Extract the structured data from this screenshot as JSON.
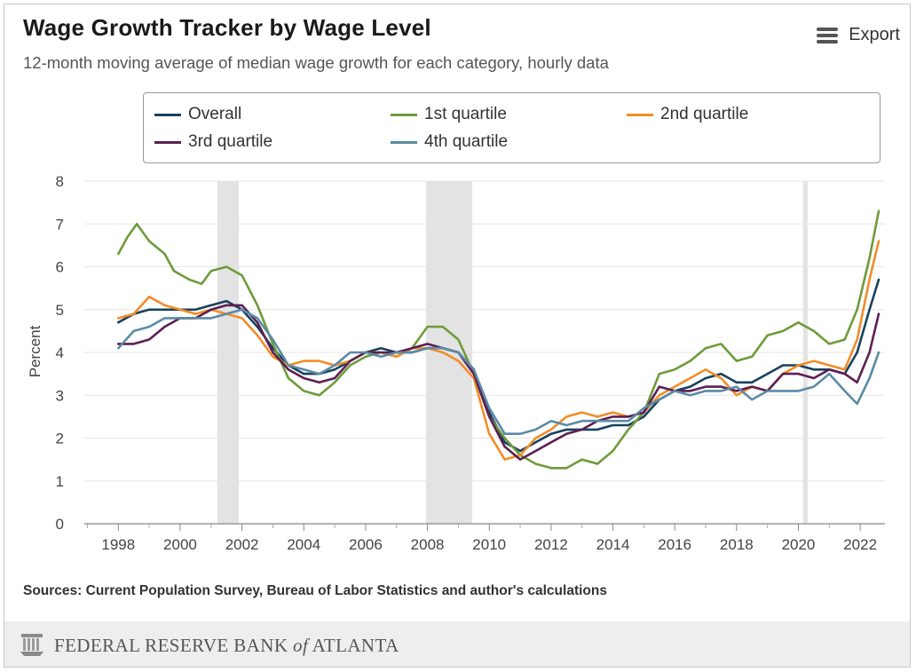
{
  "header": {
    "title": "Wage Growth Tracker by Wage Level",
    "subtitle": "12-month moving average of median wage growth for each category, hourly data",
    "export_label": "Export"
  },
  "footer": {
    "source": "Sources: Current Population Survey, Bureau of Labor Statistics and author's calculations",
    "org_prefix": "FEDERAL RESERVE BANK ",
    "org_of": "of",
    "org_suffix": " ATLANTA"
  },
  "chart_data": {
    "type": "line",
    "ylabel": "Percent",
    "ylim": [
      0,
      8
    ],
    "xlim": [
      1996.9,
      2022.8
    ],
    "yticks": [
      "0",
      "1",
      "2",
      "3",
      "4",
      "5",
      "6",
      "7",
      "8"
    ],
    "xticks": [
      "1998",
      "2000",
      "2002",
      "2004",
      "2006",
      "2008",
      "2010",
      "2012",
      "2014",
      "2016",
      "2018",
      "2020",
      "2022"
    ],
    "grid": true,
    "legend_position": "top",
    "recessions": [
      [
        2001.2,
        2001.9
      ],
      [
        2007.95,
        2009.45
      ],
      [
        2020.15,
        2020.3
      ]
    ],
    "series": [
      {
        "name": "Overall",
        "color": "#17415f",
        "points": [
          [
            1998.0,
            4.7
          ],
          [
            1998.5,
            4.9
          ],
          [
            1999.0,
            5.0
          ],
          [
            1999.5,
            5.0
          ],
          [
            2000.0,
            5.0
          ],
          [
            2000.5,
            5.0
          ],
          [
            2001.0,
            5.1
          ],
          [
            2001.5,
            5.2
          ],
          [
            2002.0,
            5.0
          ],
          [
            2002.5,
            4.6
          ],
          [
            2003.0,
            4.1
          ],
          [
            2003.5,
            3.7
          ],
          [
            2004.0,
            3.5
          ],
          [
            2004.5,
            3.5
          ],
          [
            2005.0,
            3.6
          ],
          [
            2005.5,
            3.8
          ],
          [
            2006.0,
            4.0
          ],
          [
            2006.5,
            4.1
          ],
          [
            2007.0,
            4.0
          ],
          [
            2007.5,
            4.0
          ],
          [
            2008.0,
            4.1
          ],
          [
            2008.5,
            4.1
          ],
          [
            2009.0,
            4.0
          ],
          [
            2009.5,
            3.6
          ],
          [
            2010.0,
            2.6
          ],
          [
            2010.5,
            1.9
          ],
          [
            2011.0,
            1.7
          ],
          [
            2011.5,
            1.9
          ],
          [
            2012.0,
            2.1
          ],
          [
            2012.5,
            2.2
          ],
          [
            2013.0,
            2.2
          ],
          [
            2013.5,
            2.2
          ],
          [
            2014.0,
            2.3
          ],
          [
            2014.5,
            2.3
          ],
          [
            2015.0,
            2.5
          ],
          [
            2015.5,
            2.9
          ],
          [
            2016.0,
            3.1
          ],
          [
            2016.5,
            3.2
          ],
          [
            2017.0,
            3.4
          ],
          [
            2017.5,
            3.5
          ],
          [
            2018.0,
            3.3
          ],
          [
            2018.5,
            3.3
          ],
          [
            2019.0,
            3.5
          ],
          [
            2019.5,
            3.7
          ],
          [
            2020.0,
            3.7
          ],
          [
            2020.5,
            3.6
          ],
          [
            2021.0,
            3.6
          ],
          [
            2021.5,
            3.5
          ],
          [
            2021.9,
            4.0
          ],
          [
            2022.3,
            5.0
          ],
          [
            2022.6,
            5.7
          ]
        ]
      },
      {
        "name": "1st quartile",
        "color": "#6e9b3a",
        "points": [
          [
            1998.0,
            6.3
          ],
          [
            1998.3,
            6.7
          ],
          [
            1998.6,
            7.0
          ],
          [
            1999.0,
            6.6
          ],
          [
            1999.5,
            6.3
          ],
          [
            1999.8,
            5.9
          ],
          [
            2000.3,
            5.7
          ],
          [
            2000.7,
            5.6
          ],
          [
            2001.0,
            5.9
          ],
          [
            2001.5,
            6.0
          ],
          [
            2002.0,
            5.8
          ],
          [
            2002.5,
            5.1
          ],
          [
            2003.0,
            4.2
          ],
          [
            2003.5,
            3.4
          ],
          [
            2004.0,
            3.1
          ],
          [
            2004.5,
            3.0
          ],
          [
            2005.0,
            3.3
          ],
          [
            2005.5,
            3.7
          ],
          [
            2006.0,
            3.9
          ],
          [
            2006.5,
            4.0
          ],
          [
            2007.0,
            3.9
          ],
          [
            2007.5,
            4.1
          ],
          [
            2008.0,
            4.6
          ],
          [
            2008.5,
            4.6
          ],
          [
            2009.0,
            4.3
          ],
          [
            2009.5,
            3.5
          ],
          [
            2010.0,
            2.5
          ],
          [
            2010.5,
            2.0
          ],
          [
            2011.0,
            1.6
          ],
          [
            2011.5,
            1.4
          ],
          [
            2012.0,
            1.3
          ],
          [
            2012.5,
            1.3
          ],
          [
            2013.0,
            1.5
          ],
          [
            2013.5,
            1.4
          ],
          [
            2014.0,
            1.7
          ],
          [
            2014.5,
            2.2
          ],
          [
            2015.0,
            2.6
          ],
          [
            2015.5,
            3.5
          ],
          [
            2016.0,
            3.6
          ],
          [
            2016.5,
            3.8
          ],
          [
            2017.0,
            4.1
          ],
          [
            2017.5,
            4.2
          ],
          [
            2018.0,
            3.8
          ],
          [
            2018.5,
            3.9
          ],
          [
            2019.0,
            4.4
          ],
          [
            2019.5,
            4.5
          ],
          [
            2020.0,
            4.7
          ],
          [
            2020.5,
            4.5
          ],
          [
            2021.0,
            4.2
          ],
          [
            2021.5,
            4.3
          ],
          [
            2021.9,
            5.0
          ],
          [
            2022.3,
            6.2
          ],
          [
            2022.6,
            7.3
          ]
        ]
      },
      {
        "name": "2nd quartile",
        "color": "#f28c28",
        "points": [
          [
            1998.0,
            4.8
          ],
          [
            1998.5,
            4.9
          ],
          [
            1999.0,
            5.3
          ],
          [
            1999.5,
            5.1
          ],
          [
            2000.0,
            5.0
          ],
          [
            2000.5,
            4.9
          ],
          [
            2001.0,
            5.0
          ],
          [
            2001.5,
            4.9
          ],
          [
            2002.0,
            4.8
          ],
          [
            2002.5,
            4.4
          ],
          [
            2003.0,
            3.9
          ],
          [
            2003.5,
            3.7
          ],
          [
            2004.0,
            3.8
          ],
          [
            2004.5,
            3.8
          ],
          [
            2005.0,
            3.7
          ],
          [
            2005.5,
            3.8
          ],
          [
            2006.0,
            4.0
          ],
          [
            2006.5,
            4.0
          ],
          [
            2007.0,
            3.9
          ],
          [
            2007.5,
            4.1
          ],
          [
            2008.0,
            4.1
          ],
          [
            2008.5,
            4.0
          ],
          [
            2009.0,
            3.8
          ],
          [
            2009.5,
            3.4
          ],
          [
            2010.0,
            2.1
          ],
          [
            2010.5,
            1.5
          ],
          [
            2011.0,
            1.6
          ],
          [
            2011.5,
            2.0
          ],
          [
            2012.0,
            2.2
          ],
          [
            2012.5,
            2.5
          ],
          [
            2013.0,
            2.6
          ],
          [
            2013.5,
            2.5
          ],
          [
            2014.0,
            2.6
          ],
          [
            2014.5,
            2.5
          ],
          [
            2015.0,
            2.6
          ],
          [
            2015.5,
            3.0
          ],
          [
            2016.0,
            3.2
          ],
          [
            2016.5,
            3.4
          ],
          [
            2017.0,
            3.6
          ],
          [
            2017.5,
            3.4
          ],
          [
            2018.0,
            3.0
          ],
          [
            2018.5,
            3.2
          ],
          [
            2019.0,
            3.1
          ],
          [
            2019.5,
            3.5
          ],
          [
            2020.0,
            3.7
          ],
          [
            2020.5,
            3.8
          ],
          [
            2021.0,
            3.7
          ],
          [
            2021.5,
            3.6
          ],
          [
            2021.9,
            4.3
          ],
          [
            2022.3,
            5.7
          ],
          [
            2022.6,
            6.6
          ]
        ]
      },
      {
        "name": "3rd quartile",
        "color": "#5c1f53",
        "points": [
          [
            1998.0,
            4.2
          ],
          [
            1998.5,
            4.2
          ],
          [
            1999.0,
            4.3
          ],
          [
            1999.5,
            4.6
          ],
          [
            2000.0,
            4.8
          ],
          [
            2000.5,
            4.8
          ],
          [
            2001.0,
            5.0
          ],
          [
            2001.5,
            5.1
          ],
          [
            2002.0,
            5.1
          ],
          [
            2002.5,
            4.7
          ],
          [
            2003.0,
            4.0
          ],
          [
            2003.5,
            3.6
          ],
          [
            2004.0,
            3.4
          ],
          [
            2004.5,
            3.3
          ],
          [
            2005.0,
            3.4
          ],
          [
            2005.5,
            3.8
          ],
          [
            2006.0,
            4.0
          ],
          [
            2006.5,
            4.0
          ],
          [
            2007.0,
            4.0
          ],
          [
            2007.5,
            4.1
          ],
          [
            2008.0,
            4.2
          ],
          [
            2008.5,
            4.1
          ],
          [
            2009.0,
            4.0
          ],
          [
            2009.5,
            3.5
          ],
          [
            2010.0,
            2.5
          ],
          [
            2010.5,
            1.8
          ],
          [
            2011.0,
            1.5
          ],
          [
            2011.5,
            1.7
          ],
          [
            2012.0,
            1.9
          ],
          [
            2012.5,
            2.1
          ],
          [
            2013.0,
            2.2
          ],
          [
            2013.5,
            2.4
          ],
          [
            2014.0,
            2.5
          ],
          [
            2014.5,
            2.5
          ],
          [
            2015.0,
            2.6
          ],
          [
            2015.5,
            3.2
          ],
          [
            2016.0,
            3.1
          ],
          [
            2016.5,
            3.1
          ],
          [
            2017.0,
            3.2
          ],
          [
            2017.5,
            3.2
          ],
          [
            2018.0,
            3.1
          ],
          [
            2018.5,
            3.2
          ],
          [
            2019.0,
            3.1
          ],
          [
            2019.5,
            3.5
          ],
          [
            2020.0,
            3.5
          ],
          [
            2020.5,
            3.4
          ],
          [
            2021.0,
            3.6
          ],
          [
            2021.5,
            3.5
          ],
          [
            2021.9,
            3.3
          ],
          [
            2022.3,
            4.0
          ],
          [
            2022.6,
            4.9
          ]
        ]
      },
      {
        "name": "4th quartile",
        "color": "#5b8ba6",
        "points": [
          [
            1998.0,
            4.1
          ],
          [
            1998.5,
            4.5
          ],
          [
            1999.0,
            4.6
          ],
          [
            1999.5,
            4.8
          ],
          [
            2000.0,
            4.8
          ],
          [
            2000.5,
            4.8
          ],
          [
            2001.0,
            4.8
          ],
          [
            2001.5,
            4.9
          ],
          [
            2002.0,
            5.0
          ],
          [
            2002.5,
            4.8
          ],
          [
            2003.0,
            4.3
          ],
          [
            2003.5,
            3.7
          ],
          [
            2004.0,
            3.6
          ],
          [
            2004.5,
            3.5
          ],
          [
            2005.0,
            3.7
          ],
          [
            2005.5,
            4.0
          ],
          [
            2006.0,
            4.0
          ],
          [
            2006.5,
            3.9
          ],
          [
            2007.0,
            4.0
          ],
          [
            2007.5,
            4.0
          ],
          [
            2008.0,
            4.1
          ],
          [
            2008.5,
            4.1
          ],
          [
            2009.0,
            4.0
          ],
          [
            2009.5,
            3.6
          ],
          [
            2010.0,
            2.7
          ],
          [
            2010.5,
            2.1
          ],
          [
            2011.0,
            2.1
          ],
          [
            2011.5,
            2.2
          ],
          [
            2012.0,
            2.4
          ],
          [
            2012.5,
            2.3
          ],
          [
            2013.0,
            2.4
          ],
          [
            2013.5,
            2.4
          ],
          [
            2014.0,
            2.4
          ],
          [
            2014.5,
            2.4
          ],
          [
            2015.0,
            2.7
          ],
          [
            2015.5,
            2.9
          ],
          [
            2016.0,
            3.1
          ],
          [
            2016.5,
            3.0
          ],
          [
            2017.0,
            3.1
          ],
          [
            2017.5,
            3.1
          ],
          [
            2018.0,
            3.2
          ],
          [
            2018.5,
            2.9
          ],
          [
            2019.0,
            3.1
          ],
          [
            2019.5,
            3.1
          ],
          [
            2020.0,
            3.1
          ],
          [
            2020.5,
            3.2
          ],
          [
            2021.0,
            3.5
          ],
          [
            2021.5,
            3.1
          ],
          [
            2021.9,
            2.8
          ],
          [
            2022.3,
            3.4
          ],
          [
            2022.6,
            4.0
          ]
        ]
      }
    ]
  }
}
